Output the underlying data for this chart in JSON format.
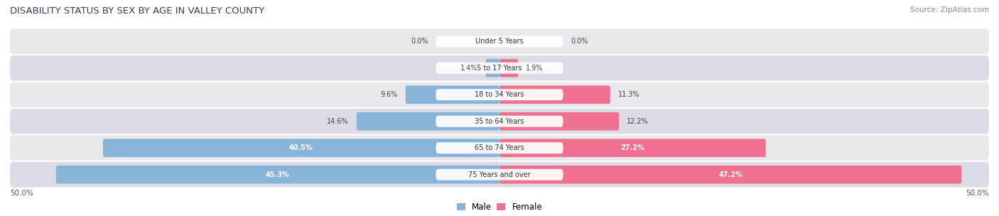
{
  "title": "DISABILITY STATUS BY SEX BY AGE IN VALLEY COUNTY",
  "source": "Source: ZipAtlas.com",
  "categories": [
    "Under 5 Years",
    "5 to 17 Years",
    "18 to 34 Years",
    "35 to 64 Years",
    "65 to 74 Years",
    "75 Years and over"
  ],
  "male_values": [
    0.0,
    1.4,
    9.6,
    14.6,
    40.5,
    45.3
  ],
  "female_values": [
    0.0,
    1.9,
    11.3,
    12.2,
    27.2,
    47.2
  ],
  "male_color": "#89b4d9",
  "female_color": "#f07090",
  "bar_bg_light": "#e8e8ed",
  "bar_bg_dark": "#dcdce4",
  "max_value": 50.0,
  "figsize": [
    14.06,
    3.04
  ],
  "dpi": 100,
  "value_inside_threshold": 20.0
}
